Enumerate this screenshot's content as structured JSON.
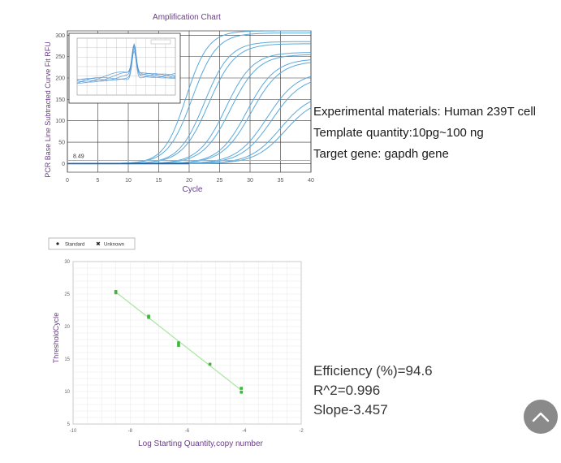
{
  "chart_data": [
    {
      "type": "line",
      "title": "Amplification Chart",
      "xlabel": "Cycle",
      "ylabel": "PCR Base Line Subtracted Curve Fit RFU",
      "xlim": [
        0,
        40
      ],
      "ylim": [
        -20,
        310
      ],
      "x_ticks": [
        "0",
        "5",
        "10",
        "15",
        "20",
        "25",
        "30",
        "35",
        "40"
      ],
      "y_ticks": [
        "0",
        "50",
        "100",
        "150",
        "200",
        "250",
        "300"
      ],
      "threshold": {
        "value": 0,
        "label": "8.49",
        "color": "#66dd66"
      },
      "grid": true,
      "line_color": "#5aa9dc",
      "series": [
        {
          "midpoint": 19.5,
          "plateau": 310,
          "k": 0.55
        },
        {
          "midpoint": 20.5,
          "plateau": 305,
          "k": 0.5
        },
        {
          "midpoint": 22.5,
          "plateau": 285,
          "k": 0.48
        },
        {
          "midpoint": 23.2,
          "plateau": 280,
          "k": 0.46
        },
        {
          "midpoint": 26.0,
          "plateau": 260,
          "k": 0.45
        },
        {
          "midpoint": 26.8,
          "plateau": 255,
          "k": 0.44
        },
        {
          "midpoint": 29.5,
          "plateau": 245,
          "k": 0.43
        },
        {
          "midpoint": 30.2,
          "plateau": 240,
          "k": 0.42
        },
        {
          "midpoint": 32.8,
          "plateau": 215,
          "k": 0.4
        },
        {
          "midpoint": 33.6,
          "plateau": 205,
          "k": 0.4
        },
        {
          "midpoint": 35.0,
          "plateau": 165,
          "k": 0.4
        },
        {
          "midpoint": 35.8,
          "plateau": 155,
          "k": 0.4
        }
      ],
      "inset": {
        "type": "line",
        "description_values": "melt curve peak",
        "xlim": [
          0,
          1
        ],
        "ylim": [
          0,
          1
        ],
        "line_color": "#4a90d0",
        "peak_x": 0.58,
        "peak_y": 0.72,
        "baseline_y": 0.22
      }
    },
    {
      "type": "scatter",
      "title": "",
      "xlabel": "Log Starting Quantity,copy number",
      "ylabel": "ThresholdCycle",
      "xlim": [
        -10,
        -2
      ],
      "ylim": [
        5,
        30
      ],
      "x_ticks": [
        "-10",
        "-8",
        "-6",
        "-4",
        "-2"
      ],
      "y_ticks": [
        "5",
        "10",
        "15",
        "20",
        "25",
        "30"
      ],
      "legend": [
        "Standard",
        "Unknown"
      ],
      "legend_position": "top-left",
      "point_color": "#3cb83c",
      "fit_color": "#a8e6a0",
      "points": [
        {
          "x": -8.5,
          "y": 25.4
        },
        {
          "x": -8.5,
          "y": 25.2
        },
        {
          "x": -7.35,
          "y": 21.6
        },
        {
          "x": -7.35,
          "y": 21.4
        },
        {
          "x": -6.3,
          "y": 17.5
        },
        {
          "x": -6.3,
          "y": 17.1
        },
        {
          "x": -5.2,
          "y": 14.2
        },
        {
          "x": -4.1,
          "y": 10.5
        },
        {
          "x": -4.1,
          "y": 9.9
        }
      ],
      "fit": {
        "x": [
          -8.5,
          -4.1
        ],
        "y": [
          25.3,
          10.2
        ]
      }
    }
  ],
  "notes_top": [
    "Experimental materials: Human 239T cell",
    "Template quantity:10pg~100 ng",
    "Target gene: gapdh gene"
  ],
  "notes_bottom": [
    "Efficiency  (%)=94.6",
    "R^2=0.996",
    "Slope-3.457"
  ],
  "scroll_top_icon": "chevron-up-icon"
}
